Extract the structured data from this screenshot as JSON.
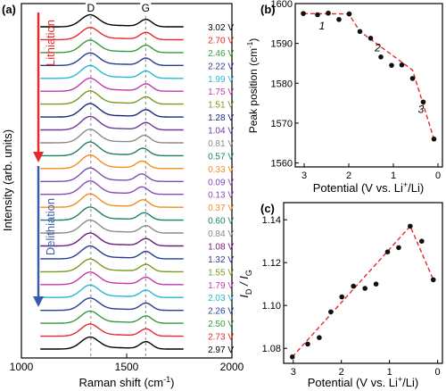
{
  "chart_data": [
    {
      "panel": "(a)",
      "type": "line",
      "xlabel": "Raman shift (cm",
      "xlabel_sup": "-1",
      "xlabel_end": ")",
      "ylabel": "Intensity (arb. units)",
      "xlim": [
        1000,
        2000
      ],
      "xticks": [
        1000,
        1500,
        2000
      ],
      "peak_labels": [
        "D",
        "G"
      ],
      "peak_positions": [
        1330,
        1590
      ],
      "lithiation_label": "Lithiation",
      "delithiation_label": "Delithiation",
      "lithiation_color": "#e8282b",
      "delithiation_color": "#3a5ca8",
      "series": [
        {
          "name": "3.02 V",
          "color": "#000000",
          "stage": "lithiation",
          "dRatio": 1.0
        },
        {
          "name": "2.70 V",
          "color": "#e8282b",
          "stage": "lithiation",
          "dRatio": 1.02
        },
        {
          "name": "2.46 V",
          "color": "#2f9e3a",
          "stage": "lithiation",
          "dRatio": 1.04
        },
        {
          "name": "2.22 V",
          "color": "#2c3a91",
          "stage": "lithiation",
          "dRatio": 1.05
        },
        {
          "name": "1.99 V",
          "color": "#26b8d6",
          "stage": "lithiation",
          "dRatio": 1.07
        },
        {
          "name": "1.75 V",
          "color": "#c23aa8",
          "stage": "lithiation",
          "dRatio": 1.09
        },
        {
          "name": "1.51 V",
          "color": "#7a9a1e",
          "stage": "lithiation",
          "dRatio": 1.11
        },
        {
          "name": "1.28 V",
          "color": "#1a2a78",
          "stage": "lithiation",
          "dRatio": 1.12
        },
        {
          "name": "1.04 V",
          "color": "#6a3a96",
          "stage": "lithiation",
          "dRatio": 1.13
        },
        {
          "name": "0.81 V",
          "color": "#8a8a8a",
          "stage": "lithiation",
          "dRatio": 1.14
        },
        {
          "name": "0.57 V",
          "color": "#1b7f6f",
          "stage": "lithiation",
          "dRatio": 1.15
        },
        {
          "name": "0.33 V",
          "color": "#f28c1e",
          "stage": "lithiation",
          "dRatio": 1.14
        },
        {
          "name": "0.09 V",
          "color": "#7a4db0",
          "stage": "lithiation",
          "dRatio": 1.13
        },
        {
          "name": "0.13 V",
          "color": "#8a4bb8",
          "stage": "delithiation",
          "dRatio": 1.13
        },
        {
          "name": "0.37 V",
          "color": "#f28c1e",
          "stage": "delithiation",
          "dRatio": 1.12
        },
        {
          "name": "0.60 V",
          "color": "#1b7f6f",
          "stage": "delithiation",
          "dRatio": 1.1
        },
        {
          "name": "0.84 V",
          "color": "#8a8a8a",
          "stage": "delithiation",
          "dRatio": 1.09
        },
        {
          "name": "1.08 V",
          "color": "#6a1b7a",
          "stage": "delithiation",
          "dRatio": 1.08
        },
        {
          "name": "1.32 V",
          "color": "#2c3a91",
          "stage": "delithiation",
          "dRatio": 1.07
        },
        {
          "name": "1.55 V",
          "color": "#7a9a1e",
          "stage": "delithiation",
          "dRatio": 1.06
        },
        {
          "name": "1.79 V",
          "color": "#c23aa8",
          "stage": "delithiation",
          "dRatio": 1.05
        },
        {
          "name": "2.03 V",
          "color": "#26b8d6",
          "stage": "delithiation",
          "dRatio": 1.04
        },
        {
          "name": "2.26 V",
          "color": "#2c3a91",
          "stage": "delithiation",
          "dRatio": 1.03
        },
        {
          "name": "2.50 V",
          "color": "#2f9e3a",
          "stage": "delithiation",
          "dRatio": 1.02
        },
        {
          "name": "2.73 V",
          "color": "#e8282b",
          "stage": "delithiation",
          "dRatio": 1.01
        },
        {
          "name": "2.97 V",
          "color": "#000000",
          "stage": "delithiation",
          "dRatio": 1.0
        }
      ]
    },
    {
      "panel": "(b)",
      "type": "scatter",
      "xlabel": "Potential (V vs. Li",
      "xlabel_sup": "+",
      "xlabel_end": "/Li)",
      "ylabel": "Peak position (cm",
      "ylabel_sup": "-1",
      "ylabel_end": ")",
      "xlim": [
        3.2,
        -0.1
      ],
      "ylim": [
        1559,
        1600
      ],
      "xticks": [
        3,
        2,
        1,
        0
      ],
      "yticks": [
        1560,
        1570,
        1580,
        1590,
        1600
      ],
      "x": [
        3.02,
        2.7,
        2.46,
        2.22,
        1.99,
        1.75,
        1.51,
        1.28,
        1.04,
        0.81,
        0.57,
        0.33,
        0.09
      ],
      "y": [
        1597.5,
        1597.2,
        1597.6,
        1596.0,
        1597.4,
        1593.0,
        1591.3,
        1586.6,
        1584.5,
        1584.6,
        1581.2,
        1575.3,
        1566.0
      ],
      "fit_line": {
        "x": [
          3.02,
          2.0,
          1.75,
          0.57,
          0.09
        ],
        "y": [
          1597.5,
          1597.4,
          1593.0,
          1583.3,
          1566.0
        ],
        "color": "#e8282b",
        "style": "dashed"
      },
      "region_labels": [
        {
          "text": "1",
          "x": 2.6,
          "y": 1593.5
        },
        {
          "text": "2",
          "x": 1.35,
          "y": 1588.0
        },
        {
          "text": "3",
          "x": 0.38,
          "y": 1572.5
        }
      ],
      "grid": false
    },
    {
      "panel": "(c)",
      "type": "scatter",
      "xlabel": "Potential (V vs. Li",
      "xlabel_sup": "+",
      "xlabel_end": "/Li)",
      "ylabel_main1": "I",
      "ylabel_sub1": "D",
      "ylabel_sep": " / I",
      "ylabel_sub2": "G",
      "xlim": [
        3.2,
        -0.1
      ],
      "ylim": [
        1.073,
        1.148
      ],
      "xticks": [
        3,
        2,
        1,
        0
      ],
      "yticks": [
        1.08,
        1.1,
        1.12,
        1.14
      ],
      "x": [
        3.02,
        2.7,
        2.46,
        2.22,
        1.99,
        1.75,
        1.51,
        1.28,
        1.04,
        0.81,
        0.57,
        0.33,
        0.09
      ],
      "y": [
        1.076,
        1.082,
        1.085,
        1.097,
        1.104,
        1.109,
        1.108,
        1.11,
        1.125,
        1.127,
        1.137,
        1.13,
        1.112
      ],
      "fit_line": {
        "x": [
          3.02,
          0.57,
          0.09
        ],
        "y": [
          1.076,
          1.137,
          1.112
        ],
        "color": "#e8282b",
        "style": "dashed"
      },
      "grid": false
    }
  ]
}
